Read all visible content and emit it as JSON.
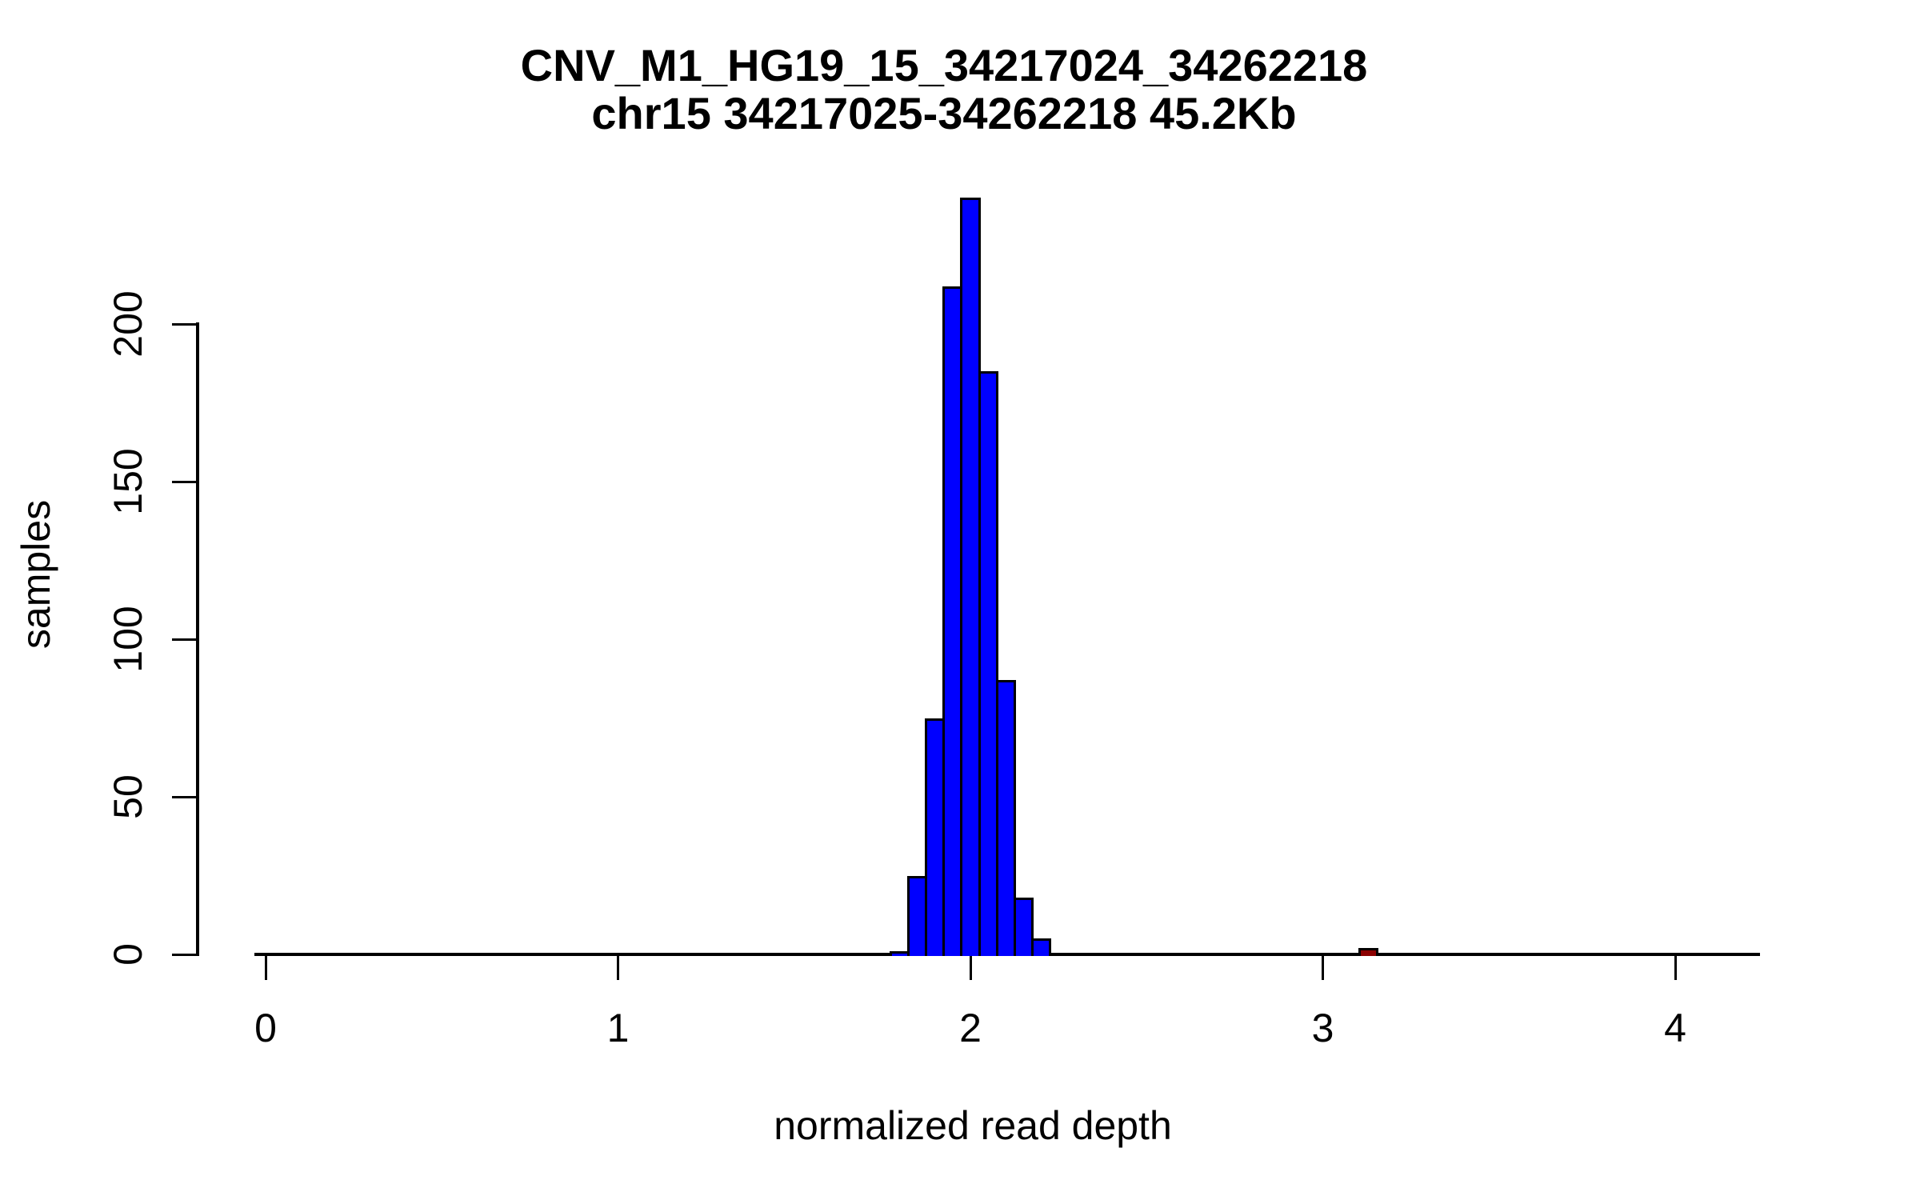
{
  "figure": {
    "background": "#FFFFFF"
  },
  "chart_data": {
    "type": "bar",
    "subtype": "histogram",
    "title": "CNV_M1_HG19_15_34217024_34262218",
    "subtitle": "chr15 34217025-34262218 45.2Kb",
    "xlabel": "normalized read depth",
    "ylabel": "samples",
    "x_ticks": [
      0,
      1,
      2,
      3,
      4
    ],
    "y_ticks": [
      0,
      50,
      100,
      150,
      200
    ],
    "xlim": [
      -0.03,
      4.27
    ],
    "ylim": [
      0,
      240
    ],
    "grid": false,
    "legend_position": "none",
    "bin_width": 0.05,
    "bars": [
      {
        "center": 1.8,
        "count": 1,
        "color": "#0000FF",
        "highlight": false
      },
      {
        "center": 1.85,
        "count": 25,
        "color": "#0000FF",
        "highlight": false
      },
      {
        "center": 1.9,
        "count": 75,
        "color": "#0000FF",
        "highlight": false
      },
      {
        "center": 1.95,
        "count": 212,
        "color": "#0000FF",
        "highlight": false
      },
      {
        "center": 2.0,
        "count": 240,
        "color": "#0000FF",
        "highlight": false
      },
      {
        "center": 2.05,
        "count": 185,
        "color": "#0000FF",
        "highlight": false
      },
      {
        "center": 2.1,
        "count": 87,
        "color": "#0000FF",
        "highlight": false
      },
      {
        "center": 2.15,
        "count": 18,
        "color": "#0000FF",
        "highlight": false
      },
      {
        "center": 2.2,
        "count": 5,
        "color": "#0000FF",
        "highlight": false
      },
      {
        "center": 3.13,
        "count": 2,
        "color": "#8B0000",
        "highlight": true
      }
    ],
    "colors": {
      "bar_fill": "#0000FF",
      "bar_border": "#000000",
      "highlight_fill": "#8B0000",
      "axis": "#000000",
      "text": "#000000",
      "background": "#FFFFFF"
    }
  }
}
